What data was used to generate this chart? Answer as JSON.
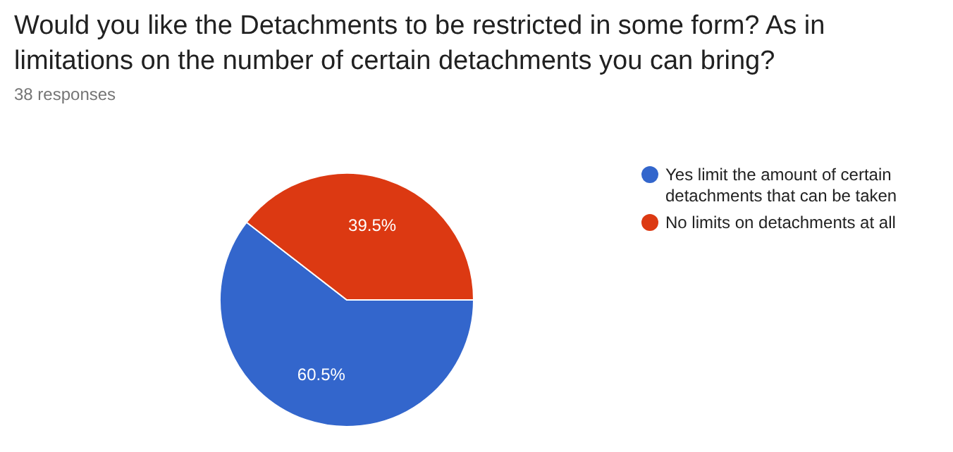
{
  "chart_data": {
    "type": "pie",
    "title": "Would you like the Detachments to be restricted in some form? As in limitations on the number of certain detachments you can bring?",
    "subtitle": "38 responses",
    "categories": [
      "Yes limit the amount of certain detachments that can be taken",
      "No limits on detachments at all"
    ],
    "values": [
      60.5,
      39.5
    ],
    "colors": [
      "#3366cc",
      "#dc3912"
    ],
    "value_labels": [
      "60.5%",
      "39.5%"
    ],
    "legend": "right"
  }
}
